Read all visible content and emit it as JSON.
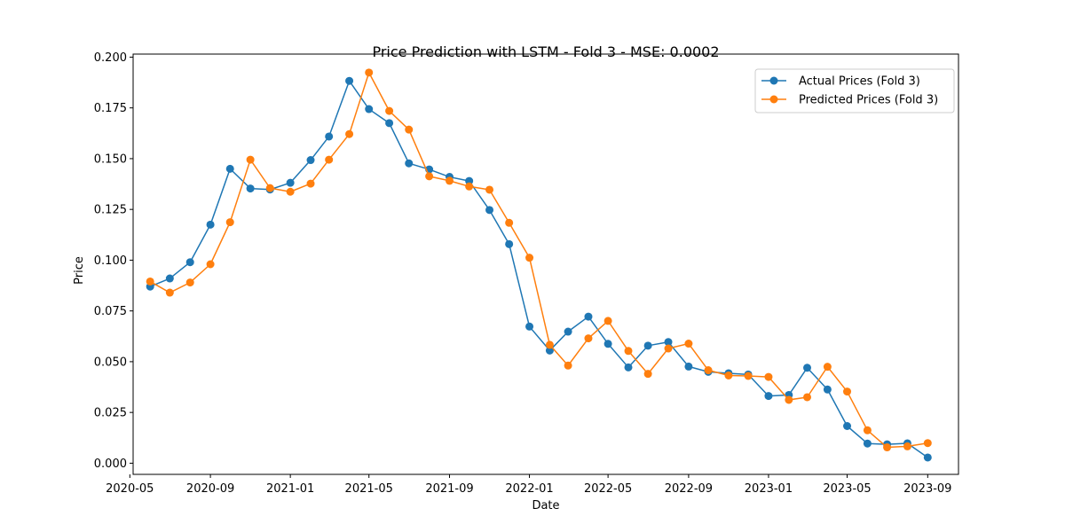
{
  "chart_data": {
    "type": "line",
    "title": "Price Prediction with LSTM - Fold 3 - MSE: 0.0002",
    "xlabel": "Date",
    "ylabel": "Price",
    "ylim": [
      -0.0055,
      0.2015
    ],
    "xlim": [
      "2020-05-06",
      "2023-10-18"
    ],
    "grid": false,
    "legend_position": "top-right",
    "x_ticks": [
      "2020-05",
      "2020-09",
      "2021-01",
      "2021-05",
      "2021-09",
      "2022-01",
      "2022-05",
      "2022-09",
      "2023-01",
      "2023-05",
      "2023-09"
    ],
    "y_ticks": [
      "0.000",
      "0.025",
      "0.050",
      "0.075",
      "0.100",
      "0.125",
      "0.150",
      "0.175",
      "0.200"
    ],
    "x": [
      "2020-06-01",
      "2020-07-01",
      "2020-08-01",
      "2020-09-01",
      "2020-10-01",
      "2020-11-01",
      "2020-12-01",
      "2021-01-01",
      "2021-02-01",
      "2021-03-01",
      "2021-04-01",
      "2021-05-01",
      "2021-06-01",
      "2021-07-01",
      "2021-08-01",
      "2021-09-01",
      "2021-10-01",
      "2021-11-01",
      "2021-12-01",
      "2022-01-01",
      "2022-02-01",
      "2022-03-01",
      "2022-04-01",
      "2022-05-01",
      "2022-06-01",
      "2022-07-01",
      "2022-08-01",
      "2022-09-01",
      "2022-10-01",
      "2022-11-01",
      "2022-12-01",
      "2023-01-01",
      "2023-02-01",
      "2023-03-01",
      "2023-04-01",
      "2023-05-01",
      "2023-06-01",
      "2023-07-01",
      "2023-08-01",
      "2023-09-01"
    ],
    "series": [
      {
        "name": "Actual Prices (Fold 3)",
        "color": "#1f77b4",
        "values": [
          0.087,
          0.091,
          0.099,
          0.1175,
          0.145,
          0.1353,
          0.1348,
          0.1381,
          0.1493,
          0.1609,
          0.1883,
          0.1744,
          0.1675,
          0.1477,
          0.1447,
          0.141,
          0.139,
          0.1247,
          0.1079,
          0.0673,
          0.0555,
          0.0648,
          0.0722,
          0.0588,
          0.0472,
          0.0579,
          0.0597,
          0.0476,
          0.045,
          0.0443,
          0.0437,
          0.0331,
          0.0336,
          0.047,
          0.0363,
          0.0183,
          0.0097,
          0.0093,
          0.0098,
          0.0028
        ]
      },
      {
        "name": "Predicted Prices (Fold 3)",
        "color": "#ff7f0e",
        "values": [
          0.0895,
          0.084,
          0.089,
          0.098,
          0.1187,
          0.1495,
          0.1355,
          0.1337,
          0.1377,
          0.1495,
          0.1621,
          0.1924,
          0.1735,
          0.1643,
          0.1413,
          0.1391,
          0.1363,
          0.1347,
          0.1184,
          0.1012,
          0.0583,
          0.0481,
          0.0615,
          0.0701,
          0.0553,
          0.044,
          0.0565,
          0.0589,
          0.0458,
          0.0432,
          0.043,
          0.0425,
          0.0312,
          0.0325,
          0.0475,
          0.0353,
          0.0162,
          0.0078,
          0.0083,
          0.0099
        ]
      }
    ]
  }
}
